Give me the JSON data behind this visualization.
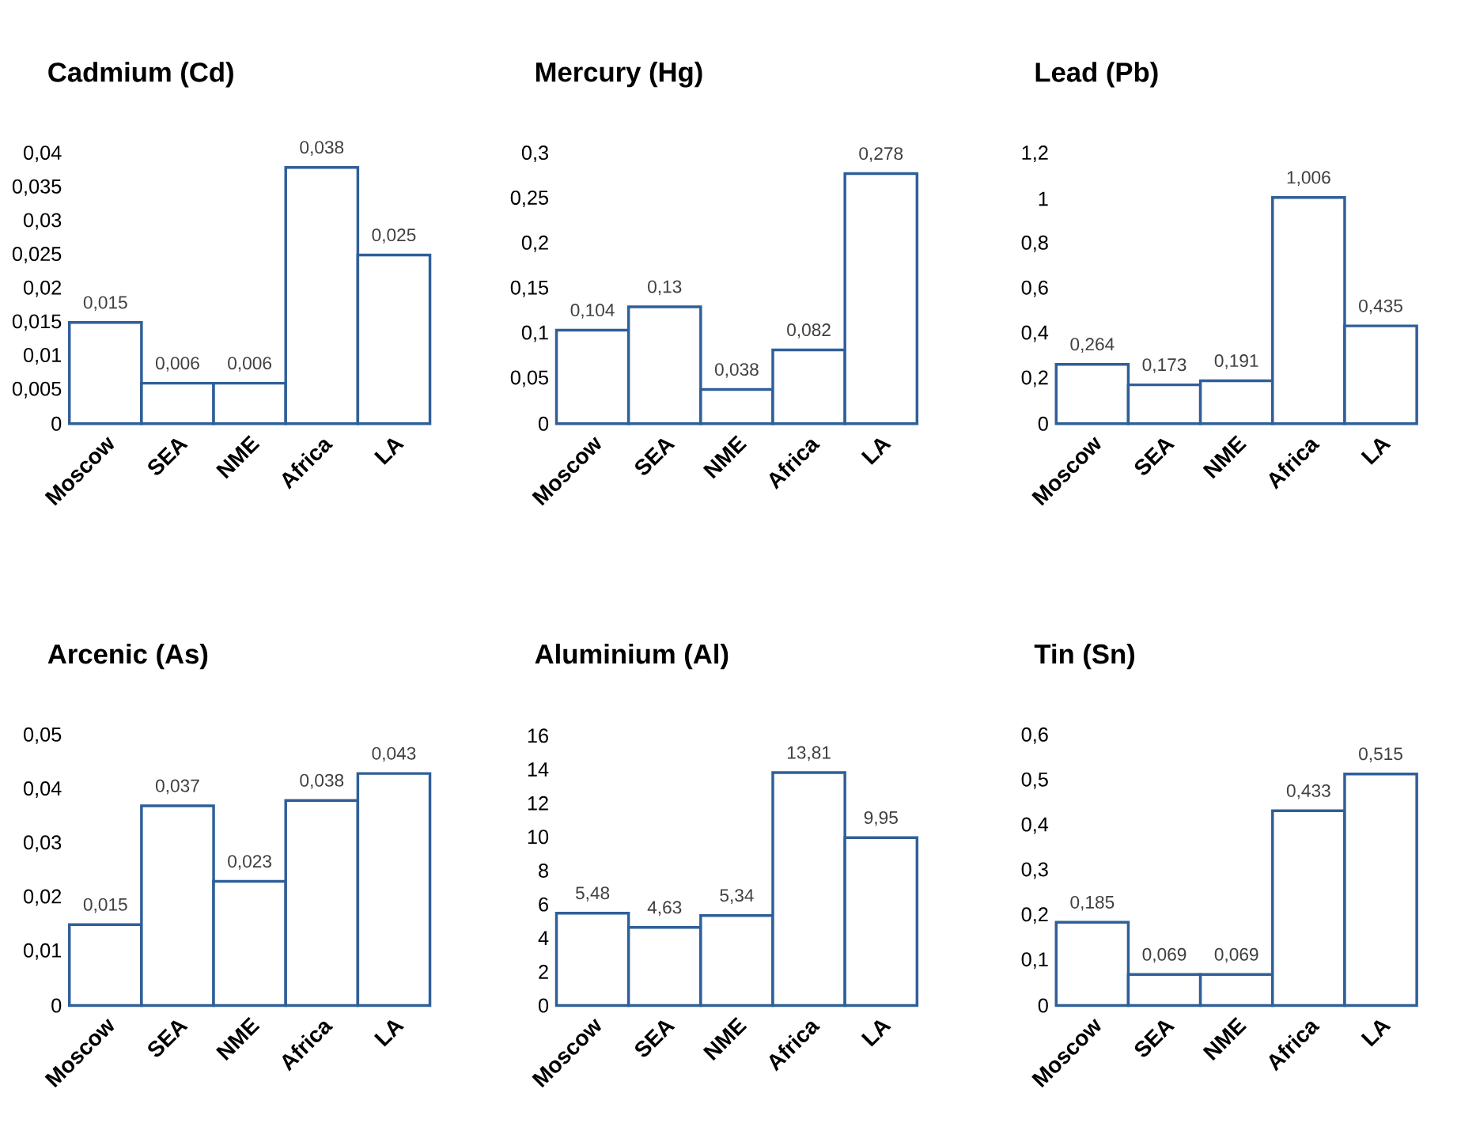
{
  "chart_data": [
    {
      "type": "bar",
      "title": "Cadmium (Cd)",
      "categories": [
        "Moscow",
        "SEA",
        "NME",
        "Africa",
        "LA"
      ],
      "values": [
        0.015,
        0.006,
        0.006,
        0.038,
        0.025
      ],
      "value_labels": [
        "0,015",
        "0,006",
        "0,006",
        "0,038",
        "0,025"
      ],
      "color": "#2f5f98",
      "ylim": [
        0,
        0.04
      ],
      "yticks": [
        {
          "value": 0,
          "label": "0"
        },
        {
          "value": 0.005,
          "label": "0,005"
        },
        {
          "value": 0.01,
          "label": "0,01"
        },
        {
          "value": 0.015,
          "label": "0,015"
        },
        {
          "value": 0.02,
          "label": "0,02"
        },
        {
          "value": 0.025,
          "label": "0,025"
        },
        {
          "value": 0.03,
          "label": "0,03"
        },
        {
          "value": 0.035,
          "label": "0,035"
        },
        {
          "value": 0.04,
          "label": "0,04"
        }
      ]
    },
    {
      "type": "bar",
      "title": "Mercury (Hg)",
      "categories": [
        "Moscow",
        "SEA",
        "NME",
        "Africa",
        "LA"
      ],
      "values": [
        0.104,
        0.13,
        0.038,
        0.082,
        0.278
      ],
      "value_labels": [
        "0,104",
        "0,13",
        "0,038",
        "0,082",
        "0,278"
      ],
      "color": "#2f5f98",
      "ylim": [
        0,
        0.3
      ],
      "yticks": [
        {
          "value": 0,
          "label": "0"
        },
        {
          "value": 0.05,
          "label": "0,05"
        },
        {
          "value": 0.1,
          "label": "0,1"
        },
        {
          "value": 0.15,
          "label": "0,15"
        },
        {
          "value": 0.2,
          "label": "0,2"
        },
        {
          "value": 0.25,
          "label": "0,25"
        },
        {
          "value": 0.3,
          "label": "0,3"
        }
      ]
    },
    {
      "type": "bar",
      "title": "Lead (Pb)",
      "categories": [
        "Moscow",
        "SEA",
        "NME",
        "Africa",
        "LA"
      ],
      "values": [
        0.264,
        0.173,
        0.191,
        1.006,
        0.435
      ],
      "value_labels": [
        "0,264",
        "0,173",
        "0,191",
        "1,006",
        "0,435"
      ],
      "color": "#2f5f98",
      "ylim": [
        0,
        1.2
      ],
      "yticks": [
        {
          "value": 0,
          "label": "0"
        },
        {
          "value": 0.2,
          "label": "0,2"
        },
        {
          "value": 0.4,
          "label": "0,4"
        },
        {
          "value": 0.6,
          "label": "0,6"
        },
        {
          "value": 0.8,
          "label": "0,8"
        },
        {
          "value": 1,
          "label": "1"
        },
        {
          "value": 1.2,
          "label": "1,2"
        }
      ]
    },
    {
      "type": "bar",
      "title": "Arcenic (As)",
      "categories": [
        "Moscow",
        "SEA",
        "NME",
        "Africa",
        "LA"
      ],
      "values": [
        0.015,
        0.037,
        0.023,
        0.038,
        0.043
      ],
      "value_labels": [
        "0,015",
        "0,037",
        "0,023",
        "0,038",
        "0,043"
      ],
      "color": "#2f5f98",
      "ylim": [
        0,
        0.05
      ],
      "yticks": [
        {
          "value": 0,
          "label": "0"
        },
        {
          "value": 0.01,
          "label": "0,01"
        },
        {
          "value": 0.02,
          "label": "0,02"
        },
        {
          "value": 0.03,
          "label": "0,03"
        },
        {
          "value": 0.04,
          "label": "0,04"
        },
        {
          "value": 0.05,
          "label": "0,05"
        }
      ]
    },
    {
      "type": "bar",
      "title": "Aluminium (Al)",
      "categories": [
        "Moscow",
        "SEA",
        "NME",
        "Africa",
        "LA"
      ],
      "values": [
        5.48,
        4.63,
        5.34,
        13.81,
        9.95
      ],
      "value_labels": [
        "5,48",
        "4,63",
        "5,34",
        "13,81",
        "9,95"
      ],
      "color": "#2f5f98",
      "ylim": [
        0,
        16
      ],
      "yticks": [
        0,
        2,
        4,
        6,
        8,
        10,
        12,
        14,
        16
      ]
    },
    {
      "type": "bar",
      "title": "Tin (Sn)",
      "categories": [
        "Moscow",
        "SEA",
        "NME",
        "Africa",
        "LA"
      ],
      "values": [
        0.185,
        0.069,
        0.069,
        0.433,
        0.515
      ],
      "value_labels": [
        "0,185",
        "0,069",
        "0,069",
        "0,433",
        "0,515"
      ],
      "color": "#2f5f98",
      "ylim": [
        0,
        0.6
      ],
      "yticks": [
        {
          "value": 0,
          "label": "0"
        },
        {
          "value": 0.1,
          "label": "0,1"
        },
        {
          "value": 0.2,
          "label": "0,2"
        },
        {
          "value": 0.3,
          "label": "0,3"
        },
        {
          "value": 0.4,
          "label": "0,4"
        },
        {
          "value": 0.5,
          "label": "0,5"
        },
        {
          "value": 0.6,
          "label": "0,6"
        }
      ]
    }
  ]
}
